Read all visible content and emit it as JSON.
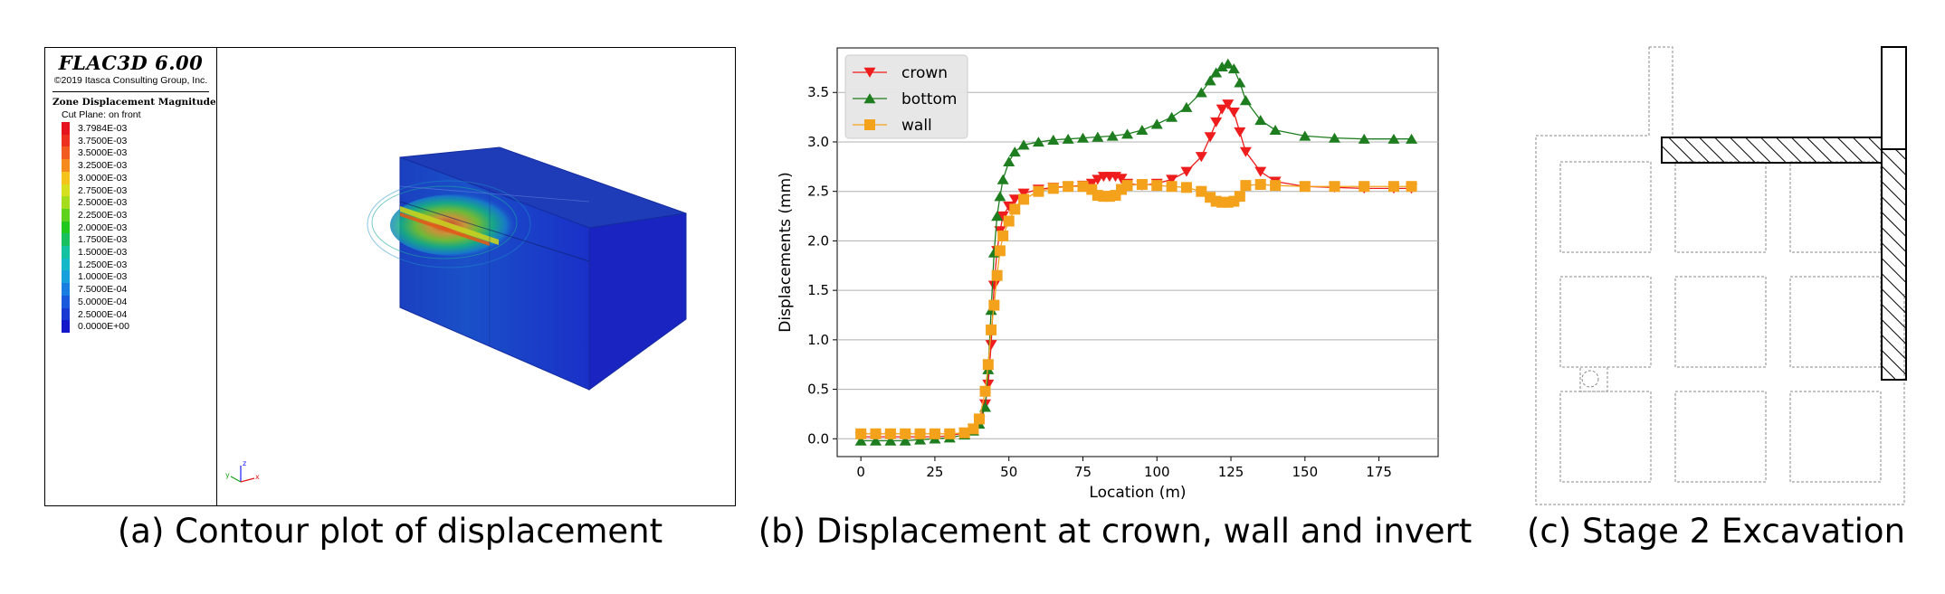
{
  "panel_a": {
    "software_title": "FLAC3D 6.00",
    "copyright": "©2019 Itasca Consulting Group, Inc.",
    "plot_title": "Zone Displacement Magnitude",
    "cut_plane": "Cut Plane: on front",
    "colorbar": [
      {
        "label": "3.7984E-03",
        "color": "#e6141e"
      },
      {
        "label": "3.7500E-03",
        "color": "#ee3020"
      },
      {
        "label": "3.5000E-03",
        "color": "#f25c20"
      },
      {
        "label": "3.2500E-03",
        "color": "#f58a1e"
      },
      {
        "label": "3.0000E-03",
        "color": "#f5c41c"
      },
      {
        "label": "2.7500E-03",
        "color": "#d6e01e"
      },
      {
        "label": "2.5000E-03",
        "color": "#a6dc1e"
      },
      {
        "label": "2.2500E-03",
        "color": "#5ed21e"
      },
      {
        "label": "2.0000E-03",
        "color": "#22c81e"
      },
      {
        "label": "1.7500E-03",
        "color": "#18c060"
      },
      {
        "label": "1.5000E-03",
        "color": "#14c2a2"
      },
      {
        "label": "1.2500E-03",
        "color": "#14b8c8"
      },
      {
        "label": "1.0000E-03",
        "color": "#18a0dc"
      },
      {
        "label": "7.5000E-04",
        "color": "#1a7ee0"
      },
      {
        "label": "5.0000E-04",
        "color": "#1a58dc"
      },
      {
        "label": "2.5000E-04",
        "color": "#1a38d2"
      },
      {
        "label": "0.0000E+00",
        "color": "#1418c8"
      }
    ],
    "axes_labels": {
      "z": "z",
      "y": "y",
      "x": "x"
    },
    "caption": "(a) Contour plot of displacement"
  },
  "chart_data": {
    "type": "line",
    "xlabel": "Location (m)",
    "ylabel": "Displacements (mm)",
    "xlim": [
      -8,
      195
    ],
    "ylim": [
      -0.18,
      3.95
    ],
    "xticks": [
      0,
      25,
      50,
      75,
      100,
      125,
      150,
      175
    ],
    "yticks": [
      0.0,
      0.5,
      1.0,
      1.5,
      2.0,
      2.5,
      3.0,
      3.5
    ],
    "grid": "horizontal",
    "legend_position": "top-left",
    "series": [
      {
        "name": "crown",
        "color": "#ee1c1c",
        "marker": "triangle-down",
        "x": [
          0,
          5,
          10,
          15,
          20,
          25,
          30,
          35,
          38,
          40,
          42,
          43,
          44,
          45,
          46,
          47,
          48,
          50,
          52,
          55,
          60,
          65,
          70,
          75,
          78,
          80,
          82,
          84,
          86,
          88,
          90,
          95,
          100,
          105,
          110,
          115,
          118,
          120,
          122,
          124,
          126,
          128,
          130,
          135,
          140,
          150,
          160,
          170,
          180,
          186
        ],
        "values": [
          0.02,
          0.02,
          0.02,
          0.02,
          0.02,
          0.02,
          0.03,
          0.06,
          0.1,
          0.18,
          0.35,
          0.55,
          0.95,
          1.55,
          1.9,
          2.1,
          2.25,
          2.35,
          2.42,
          2.48,
          2.52,
          2.54,
          2.55,
          2.56,
          2.58,
          2.62,
          2.65,
          2.65,
          2.65,
          2.63,
          2.58,
          2.56,
          2.58,
          2.62,
          2.7,
          2.85,
          3.05,
          3.2,
          3.33,
          3.38,
          3.3,
          3.1,
          2.9,
          2.7,
          2.6,
          2.55,
          2.54,
          2.53,
          2.53,
          2.53
        ]
      },
      {
        "name": "bottom",
        "color": "#1e7d1e",
        "marker": "triangle-up",
        "x": [
          0,
          5,
          10,
          15,
          20,
          25,
          30,
          35,
          38,
          40,
          42,
          43,
          44,
          45,
          46,
          47,
          48,
          50,
          52,
          55,
          60,
          65,
          70,
          75,
          80,
          85,
          90,
          95,
          100,
          105,
          110,
          115,
          118,
          120,
          122,
          124,
          126,
          128,
          130,
          135,
          140,
          150,
          160,
          170,
          180,
          186
        ],
        "values": [
          -0.02,
          -0.02,
          -0.02,
          -0.02,
          -0.01,
          0.0,
          0.01,
          0.04,
          0.08,
          0.15,
          0.32,
          0.7,
          1.3,
          1.88,
          2.25,
          2.45,
          2.62,
          2.8,
          2.9,
          2.97,
          3.0,
          3.02,
          3.03,
          3.04,
          3.05,
          3.06,
          3.08,
          3.12,
          3.18,
          3.25,
          3.35,
          3.5,
          3.62,
          3.7,
          3.76,
          3.79,
          3.74,
          3.6,
          3.42,
          3.22,
          3.12,
          3.06,
          3.04,
          3.03,
          3.03,
          3.03
        ]
      },
      {
        "name": "wall",
        "color": "#f4a21c",
        "marker": "square",
        "x": [
          0,
          5,
          10,
          15,
          20,
          25,
          30,
          35,
          38,
          40,
          42,
          43,
          44,
          45,
          46,
          47,
          48,
          50,
          52,
          55,
          60,
          65,
          70,
          75,
          78,
          80,
          82,
          84,
          86,
          88,
          90,
          95,
          100,
          105,
          110,
          115,
          118,
          120,
          122,
          124,
          126,
          128,
          130,
          135,
          140,
          150,
          160,
          170,
          180,
          186
        ],
        "values": [
          0.05,
          0.05,
          0.05,
          0.05,
          0.05,
          0.05,
          0.05,
          0.06,
          0.1,
          0.2,
          0.48,
          0.75,
          1.1,
          1.35,
          1.65,
          1.9,
          2.05,
          2.2,
          2.32,
          2.42,
          2.5,
          2.53,
          2.55,
          2.55,
          2.52,
          2.46,
          2.45,
          2.45,
          2.46,
          2.52,
          2.56,
          2.57,
          2.56,
          2.55,
          2.54,
          2.5,
          2.44,
          2.4,
          2.39,
          2.39,
          2.4,
          2.45,
          2.56,
          2.57,
          2.56,
          2.55,
          2.55,
          2.55,
          2.55,
          2.55
        ]
      }
    ],
    "caption": "(b) Displacement at crown, wall and invert"
  },
  "panel_c": {
    "caption": "(c) Stage 2 Excavation"
  }
}
